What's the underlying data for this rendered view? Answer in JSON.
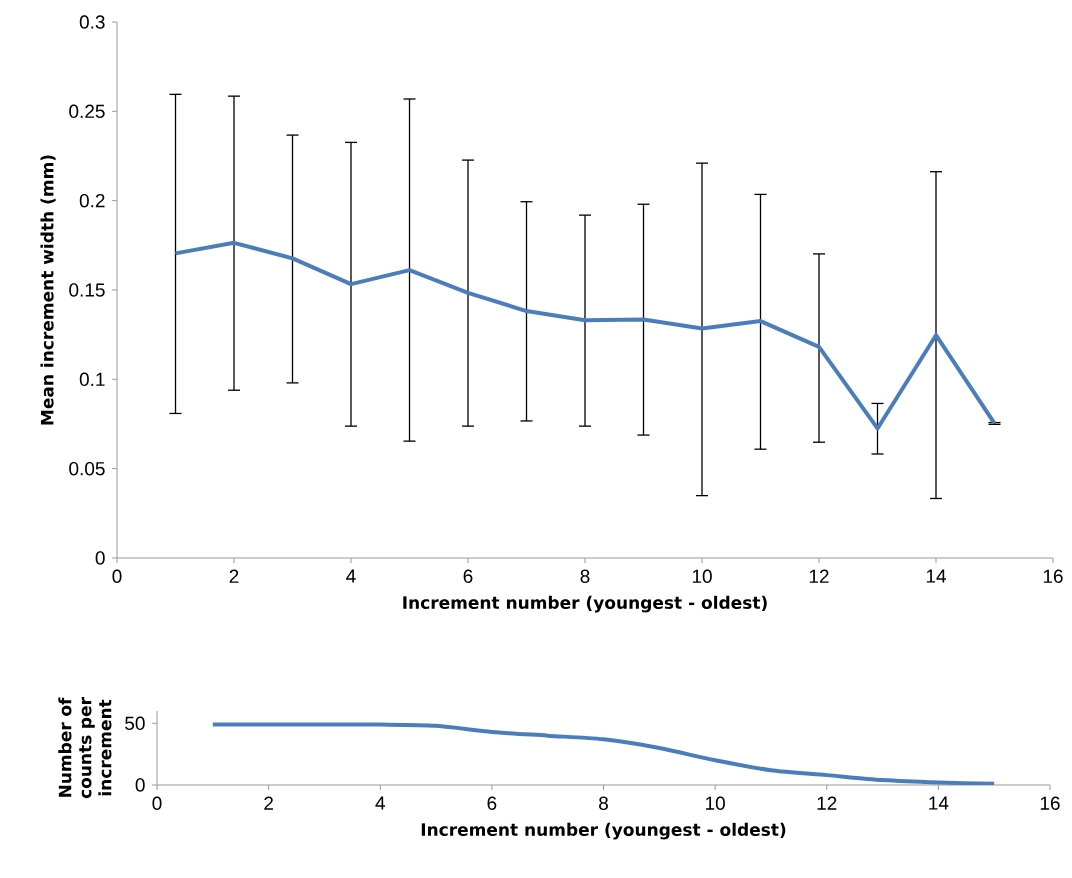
{
  "chart_data": [
    {
      "type": "line",
      "x": [
        1,
        2,
        3,
        4,
        5,
        6,
        7,
        8,
        9,
        10,
        11,
        12,
        13,
        14,
        15
      ],
      "series": [
        {
          "color": "#4a7ebb",
          "values": [
            0.1705,
            0.1764,
            0.1677,
            0.1533,
            0.1611,
            0.1484,
            0.1382,
            0.1331,
            0.1335,
            0.1285,
            0.1326,
            0.1182,
            0.0725,
            0.1247,
            0.0753
          ],
          "errors": [
            [
              0.0809,
              0.2595
            ],
            [
              0.0939,
              0.2585
            ],
            [
              0.098,
              0.2367
            ],
            [
              0.0738,
              0.2326
            ],
            [
              0.0654,
              0.2569
            ],
            [
              0.0738,
              0.2227
            ],
            [
              0.0767,
              0.1994
            ],
            [
              0.0738,
              0.1919
            ],
            [
              0.0688,
              0.198
            ],
            [
              0.0349,
              0.221
            ],
            [
              0.0609,
              0.2035
            ],
            [
              0.0648,
              0.1702
            ],
            [
              0.0582,
              0.0865
            ],
            [
              0.0333,
              0.2162
            ],
            [
              0.0748,
              0.0758
            ]
          ]
        }
      ],
      "xlim": [
        0,
        16
      ],
      "xticks": [
        0,
        2,
        4,
        6,
        8,
        10,
        12,
        14,
        16
      ],
      "ylim": [
        0,
        0.3
      ],
      "yticks": [
        0,
        0.05,
        0.1,
        0.15,
        0.2,
        0.25,
        0.3
      ],
      "xlabel": "Increment number (youngest - oldest)",
      "ylabel": "Mean increment width (mm)",
      "grid": false,
      "line_style": "solid"
    },
    {
      "type": "line",
      "x": [
        1,
        2,
        3,
        4,
        5,
        6,
        7,
        8,
        9,
        10,
        11,
        12,
        13,
        14,
        15
      ],
      "series": [
        {
          "color": "#4a7ebb",
          "values": [
            49,
            49,
            49,
            49,
            48,
            43,
            40,
            37,
            30,
            20,
            12,
            8,
            4,
            2,
            1
          ]
        }
      ],
      "xlim": [
        0,
        16
      ],
      "xticks": [
        0,
        2,
        4,
        6,
        8,
        10,
        12,
        14,
        16
      ],
      "ylim": [
        0,
        60
      ],
      "yticks": [
        0,
        50
      ],
      "xlabel": "Increment number (youngest - oldest)",
      "ylabel": "Number of counts per increment",
      "grid": false,
      "line_style": "solid"
    }
  ]
}
